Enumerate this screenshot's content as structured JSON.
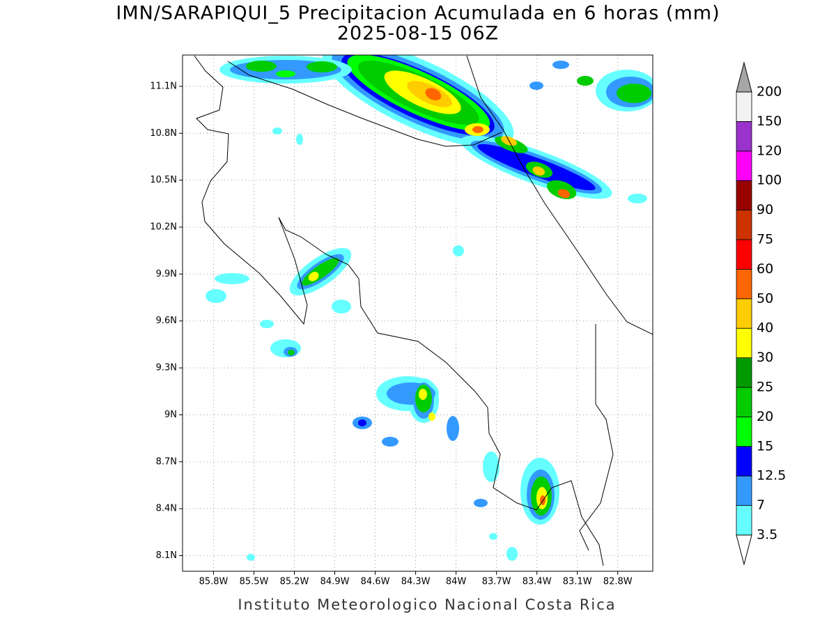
{
  "title": "IMN/SARAPIQUI_5 Precipitacion Acumulada en 6 horas (mm)",
  "subtitle": "2025-08-15 06Z",
  "footer": "Instituto Meteorologico Nacional Costa Rica",
  "map": {
    "xlim": [
      -86.03,
      -82.54
    ],
    "ylim": [
      8.0,
      11.3
    ],
    "grid": true,
    "xticks": [
      {
        "value": -85.8,
        "label": "85.8W"
      },
      {
        "value": -85.5,
        "label": "85.5W"
      },
      {
        "value": -85.2,
        "label": "85.2W"
      },
      {
        "value": -84.9,
        "label": "84.9W"
      },
      {
        "value": -84.6,
        "label": "84.6W"
      },
      {
        "value": -84.3,
        "label": "84.3W"
      },
      {
        "value": -84.0,
        "label": "84W"
      },
      {
        "value": -83.7,
        "label": "83.7W"
      },
      {
        "value": -83.4,
        "label": "83.4W"
      },
      {
        "value": -83.1,
        "label": "83.1W"
      },
      {
        "value": -82.8,
        "label": "82.8W"
      }
    ],
    "yticks": [
      {
        "value": 8.1,
        "label": "8.1N"
      },
      {
        "value": 8.4,
        "label": "8.4N"
      },
      {
        "value": 8.7,
        "label": "8.7N"
      },
      {
        "value": 9.0,
        "label": "9N"
      },
      {
        "value": 9.3,
        "label": "9.3N"
      },
      {
        "value": 9.6,
        "label": "9.6N"
      },
      {
        "value": 9.9,
        "label": "9.9N"
      },
      {
        "value": 10.2,
        "label": "10.2N"
      },
      {
        "value": 10.5,
        "label": "10.5N"
      },
      {
        "value": 10.8,
        "label": "10.8N"
      },
      {
        "value": 11.1,
        "label": "11.1N"
      }
    ]
  },
  "colorbar": {
    "levels": [
      3.5,
      7,
      12.5,
      15,
      20,
      25,
      30,
      40,
      50,
      60,
      75,
      90,
      100,
      120,
      150,
      200
    ],
    "colors": [
      "#66ffff",
      "#3399ff",
      "#0000ff",
      "#00ff00",
      "#00cc00",
      "#009900",
      "#ffff00",
      "#ffcc00",
      "#ff6600",
      "#ff0000",
      "#cc3300",
      "#990000",
      "#ff00ff",
      "#9933cc",
      "#f2f2f2"
    ],
    "under_color": "#ffffff",
    "over_color": "#a6a6a6"
  }
}
